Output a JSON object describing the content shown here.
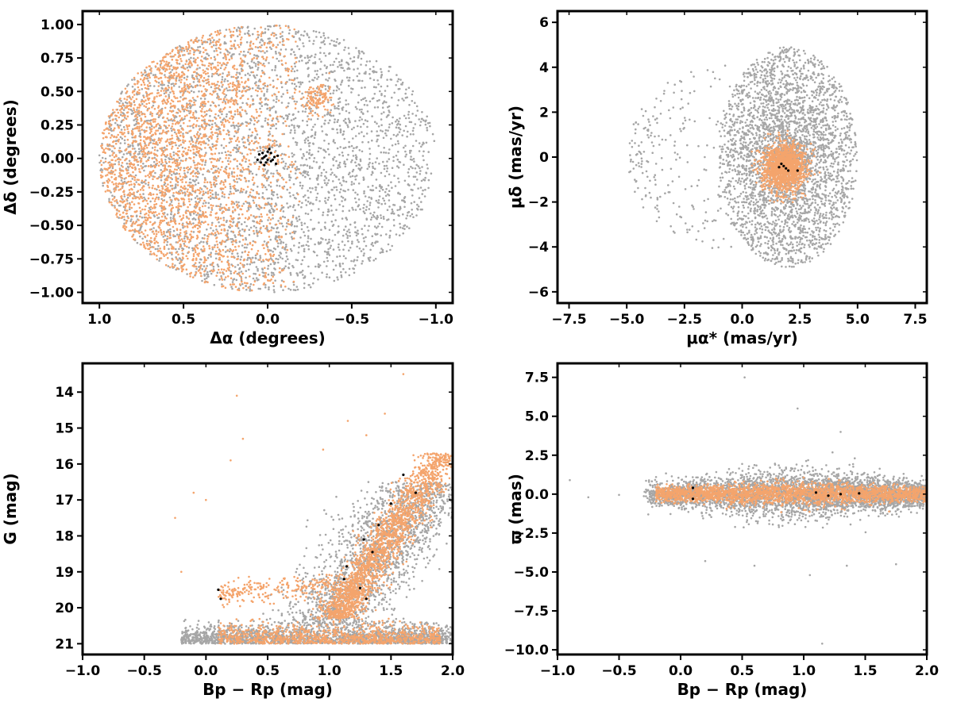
{
  "colors": {
    "field": "#a6a6a6",
    "member": "#f4a46c",
    "core": "#000000",
    "axis": "#000000"
  },
  "chart_data": [
    {
      "id": "sky",
      "type": "scatter",
      "xlabel": "Δα (degrees)",
      "ylabel": "Δδ (degrees)",
      "xlim": [
        1.1,
        -1.1
      ],
      "ylim": [
        -1.08,
        1.1
      ],
      "xticks": [
        1.0,
        0.5,
        0.0,
        -0.5,
        -1.0
      ],
      "xtick_labels": [
        "1.0",
        "0.5",
        "0.0",
        "−0.5",
        "−1.0"
      ],
      "yticks": [
        1.0,
        0.75,
        0.5,
        0.25,
        0.0,
        -0.25,
        -0.5,
        -0.75,
        -1.0
      ],
      "ytick_labels": [
        "1.00",
        "0.75",
        "0.50",
        "0.25",
        "0.00",
        "−0.25",
        "−0.50",
        "−0.75",
        "−1.00"
      ],
      "series": [
        {
          "color_key": "field",
          "distribution": {
            "shape": "disk",
            "center": [
              0,
              0
            ],
            "radius_x": 1.0,
            "radius_y": 1.0,
            "count": 3200
          }
        },
        {
          "color_key": "member",
          "distribution": {
            "shape": "disk-left-weighted",
            "center": [
              0,
              0
            ],
            "radius_x": 1.0,
            "radius_y": 1.0,
            "x_range": [
              1.0,
              -0.15
            ],
            "count": 2600
          }
        },
        {
          "color_key": "member",
          "distribution": {
            "shape": "clump",
            "center": [
              -0.3,
              0.45
            ],
            "radius_x": 0.08,
            "radius_y": 0.12,
            "count": 120
          }
        },
        {
          "color_key": "core",
          "points": [
            [
              0.03,
              0.0
            ],
            [
              0.01,
              0.02
            ],
            [
              -0.02,
              -0.02
            ],
            [
              0.04,
              -0.03
            ],
            [
              0.0,
              0.05
            ],
            [
              -0.04,
              0.01
            ],
            [
              0.02,
              -0.05
            ],
            [
              -0.02,
              0.04
            ],
            [
              0.05,
              0.03
            ],
            [
              -0.05,
              -0.04
            ],
            [
              0.0,
              -0.01
            ],
            [
              0.03,
              0.04
            ],
            [
              -0.03,
              -0.01
            ],
            [
              0.01,
              -0.03
            ],
            [
              -0.01,
              0.07
            ],
            [
              0.06,
              -0.01
            ],
            [
              -0.06,
              0.02
            ],
            [
              0.02,
              0.01
            ]
          ]
        }
      ]
    },
    {
      "id": "pm",
      "type": "scatter",
      "xlabel": "μα* (mas/yr)",
      "ylabel": "μδ (mas/yr)",
      "xlim": [
        -8.0,
        8.0
      ],
      "ylim": [
        -6.5,
        6.5
      ],
      "xticks": [
        -7.5,
        -5.0,
        -2.5,
        0.0,
        2.5,
        5.0,
        7.5
      ],
      "xtick_labels": [
        "−7.5",
        "−5.0",
        "−2.5",
        "0.0",
        "2.5",
        "5.0",
        "7.5"
      ],
      "yticks": [
        6,
        4,
        2,
        0,
        -2,
        -4,
        -6
      ],
      "ytick_labels": [
        "6",
        "4",
        "2",
        "0",
        "−2",
        "−4",
        "−6"
      ],
      "series": [
        {
          "color_key": "field",
          "distribution": {
            "shape": "disk-centered-dense",
            "center": [
              2.0,
              0.0
            ],
            "radius_x": 3.0,
            "radius_y": 4.9,
            "count": 3400
          }
        },
        {
          "color_key": "field",
          "distribution": {
            "shape": "sparse-left-tail",
            "center": [
              -2.5,
              0.0
            ],
            "radius_x": 2.5,
            "radius_y": 4.0,
            "count": 220
          }
        },
        {
          "color_key": "member",
          "distribution": {
            "shape": "clump",
            "center": [
              1.8,
              -0.45
            ],
            "radius_x": 0.95,
            "radius_y": 1.05,
            "count": 1400
          }
        },
        {
          "color_key": "core",
          "points": [
            [
              1.8,
              -0.4
            ],
            [
              1.9,
              -0.5
            ],
            [
              1.7,
              -0.3
            ],
            [
              2.0,
              -0.6
            ],
            [
              1.6,
              -0.45
            ],
            [
              2.4,
              -0.6
            ]
          ]
        }
      ]
    },
    {
      "id": "cmd",
      "type": "scatter",
      "xlabel": "Bp − Rp (mag)",
      "ylabel": "G (mag)",
      "xlim": [
        -1.0,
        2.0
      ],
      "ylim": [
        21.3,
        13.2
      ],
      "xticks": [
        -1.0,
        -0.5,
        0.0,
        0.5,
        1.0,
        1.5,
        2.0
      ],
      "xtick_labels": [
        "−1.0",
        "−0.5",
        "0.0",
        "0.5",
        "1.0",
        "1.5",
        "2.0"
      ],
      "yticks": [
        21,
        20,
        19,
        18,
        17,
        16,
        15,
        14
      ],
      "ytick_labels": [
        "21",
        "20",
        "19",
        "18",
        "17",
        "16",
        "15",
        "14"
      ],
      "series": [
        {
          "color_key": "field",
          "distribution": {
            "shape": "faint-band",
            "x_range": [
              -0.2,
              2.0
            ],
            "y_range": [
              20.3,
              21.0
            ],
            "count": 1800
          }
        },
        {
          "color_key": "field",
          "distribution": {
            "shape": "sequence",
            "x_range": [
              0.9,
              2.0
            ],
            "y_range": [
              16.5,
              20.5
            ],
            "count": 1800
          }
        },
        {
          "color_key": "member",
          "distribution": {
            "shape": "faint-band",
            "x_range": [
              0.1,
              1.9
            ],
            "y_range": [
              20.3,
              21.0
            ],
            "count": 900
          }
        },
        {
          "color_key": "member",
          "distribution": {
            "shape": "main-sequence",
            "x_range": [
              1.0,
              2.0
            ],
            "y_range": [
              15.5,
              20.3
            ],
            "count": 1900
          }
        },
        {
          "color_key": "member",
          "distribution": {
            "shape": "blue-branch",
            "x_range": [
              0.0,
              1.0
            ],
            "y_range": [
              19.0,
              20.0
            ],
            "count": 250
          }
        },
        {
          "color_key": "member",
          "points": [
            [
              -0.25,
              17.5
            ],
            [
              -0.1,
              16.8
            ],
            [
              0.0,
              17.0
            ],
            [
              0.25,
              14.1
            ],
            [
              0.2,
              15.9
            ],
            [
              0.3,
              15.3
            ],
            [
              1.3,
              15.2
            ],
            [
              1.45,
              14.6
            ],
            [
              1.6,
              13.5
            ],
            [
              -0.2,
              19.0
            ],
            [
              0.95,
              15.6
            ],
            [
              1.15,
              14.8
            ]
          ]
        },
        {
          "color_key": "core",
          "points": [
            [
              0.1,
              19.5
            ],
            [
              0.12,
              19.75
            ],
            [
              1.12,
              19.2
            ],
            [
              1.14,
              18.85
            ],
            [
              1.25,
              19.45
            ],
            [
              1.3,
              19.75
            ],
            [
              1.35,
              18.45
            ],
            [
              1.4,
              17.7
            ],
            [
              1.5,
              17.1
            ],
            [
              1.6,
              16.3
            ],
            [
              1.7,
              16.8
            ],
            [
              1.28,
              18.1
            ]
          ]
        }
      ]
    },
    {
      "id": "plx",
      "type": "scatter",
      "xlabel": "Bp − Rp (mag)",
      "ylabel": "ϖ (mas)",
      "xlim": [
        -1.0,
        2.0
      ],
      "ylim": [
        -10.3,
        8.4
      ],
      "xticks": [
        -1.0,
        -0.5,
        0.0,
        0.5,
        1.0,
        1.5,
        2.0
      ],
      "xtick_labels": [
        "−1.0",
        "−0.5",
        "0.0",
        "0.5",
        "1.0",
        "1.5",
        "2.0"
      ],
      "yticks": [
        7.5,
        5.0,
        2.5,
        0.0,
        -2.5,
        -5.0,
        -7.5,
        -10.0
      ],
      "ytick_labels": [
        "7.5",
        "5.0",
        "2.5",
        "0.0",
        "−2.5",
        "−5.0",
        "−7.5",
        "−10.0"
      ],
      "series": [
        {
          "color_key": "field",
          "distribution": {
            "shape": "horizontal-spread",
            "x_range": [
              -0.3,
              2.0
            ],
            "y_center": 0.0,
            "y_spread": 3.5,
            "count": 3600
          }
        },
        {
          "color_key": "member",
          "distribution": {
            "shape": "horizontal-narrow",
            "x_range": [
              -0.2,
              2.0
            ],
            "y_center": 0.0,
            "y_spread": 1.2,
            "count": 2200
          }
        },
        {
          "color_key": "field",
          "points": [
            [
              -0.9,
              0.9
            ],
            [
              -0.75,
              -0.2
            ],
            [
              -0.5,
              -0.05
            ],
            [
              0.52,
              7.5
            ],
            [
              0.95,
              5.5
            ],
            [
              1.15,
              -9.6
            ],
            [
              1.3,
              4.0
            ],
            [
              1.35,
              -4.6
            ],
            [
              0.2,
              -4.3
            ],
            [
              1.05,
              -5.2
            ],
            [
              1.75,
              -4.5
            ],
            [
              0.6,
              -4.6
            ]
          ]
        },
        {
          "color_key": "core",
          "points": [
            [
              0.1,
              0.4
            ],
            [
              0.1,
              -0.3
            ],
            [
              1.1,
              0.1
            ],
            [
              1.2,
              -0.1
            ],
            [
              1.3,
              0.0
            ],
            [
              1.45,
              0.05
            ]
          ]
        }
      ]
    }
  ]
}
